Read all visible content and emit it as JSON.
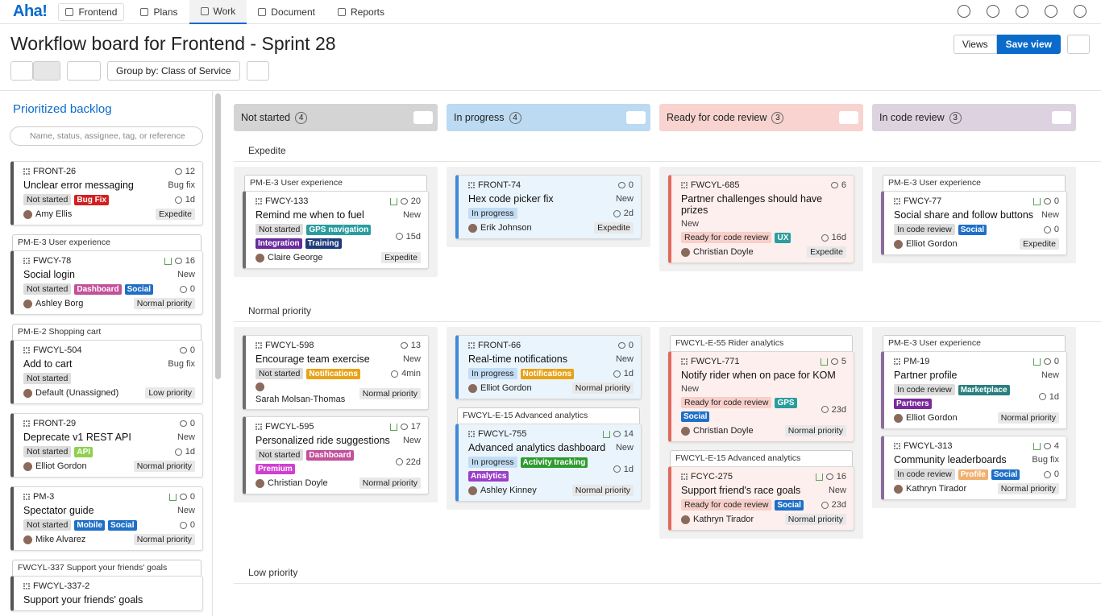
{
  "nav": {
    "logo": "Aha!",
    "workspace": "Frontend",
    "tabs": [
      "Plans",
      "Work",
      "Document",
      "Reports"
    ],
    "active_tab": 1
  },
  "header": {
    "title": "Workflow board for Frontend - Sprint 28",
    "views": "Views",
    "save": "Save view"
  },
  "toolbar": {
    "group_by": "Group by: Class of Service"
  },
  "backlog": {
    "title": "Prioritized backlog",
    "search_placeholder": "Name, status, assignee, tag, or reference",
    "items": [
      {
        "cards": [
          {
            "id": "FRONT-26",
            "score": 12,
            "title": "Unclear error messaging",
            "type": "Bug fix",
            "status": "Not started",
            "tags": [
              {
                "label": "Bug Fix",
                "color": "#d21f1f"
              }
            ],
            "time": "1d",
            "assignee": "Amy Ellis",
            "priority": "Expedite"
          }
        ]
      },
      {
        "parent": "PM-E-3 User experience",
        "cards": [
          {
            "id": "FWCY-78",
            "tree": true,
            "score": 16,
            "title": "Social login",
            "type": "New",
            "status": "Not started",
            "tags": [
              {
                "label": "Dashboard",
                "color": "#c2509a"
              },
              {
                "label": "Social",
                "color": "#1f6fc7"
              }
            ],
            "time": "0",
            "assignee": "Ashley Borg",
            "priority": "Normal priority"
          }
        ]
      },
      {
        "parent": "PM-E-2 Shopping cart",
        "cards": [
          {
            "id": "FWCYL-504",
            "score": 0,
            "title": "Add to cart",
            "type": "Bug fix",
            "status": "Not started",
            "assignee": "Default (Unassigned)",
            "priority": "Low priority"
          }
        ]
      },
      {
        "cards": [
          {
            "id": "FRONT-29",
            "score": 0,
            "title": "Deprecate v1 REST API",
            "type": "New",
            "status": "Not started",
            "tags": [
              {
                "label": "API",
                "color": "#8fd14f"
              }
            ],
            "time": "1d",
            "assignee": "Elliot Gordon",
            "priority": "Normal priority"
          }
        ]
      },
      {
        "cards": [
          {
            "id": "PM-3",
            "tree": true,
            "score": 0,
            "title": "Spectator guide",
            "type": "New",
            "status": "Not started",
            "tags": [
              {
                "label": "Mobile",
                "color": "#1f6fc7"
              },
              {
                "label": "Social",
                "color": "#1f6fc7"
              }
            ],
            "time": "0",
            "assignee": "Mike Alvarez",
            "priority": "Normal priority"
          }
        ]
      },
      {
        "parent": "FWCYL-337 Support your friends' goals",
        "cards": [
          {
            "id": "FWCYL-337-2",
            "title": "Support your friends' goals"
          }
        ]
      }
    ]
  },
  "board": {
    "columns": [
      {
        "name": "Not started",
        "count": 4,
        "color": "#d4d4d4",
        "accent": "#6e6e6e",
        "card_bg": "#ffffff",
        "chip": "#dcdcdc"
      },
      {
        "name": "In progress",
        "count": 4,
        "color": "#bcdaf1",
        "accent": "#3f8ad6",
        "card_bg": "#eaf4fc",
        "chip": "#c3def4"
      },
      {
        "name": "Ready for code review",
        "count": 3,
        "color": "#f8d3cf",
        "accent": "#e06a5c",
        "card_bg": "#fdefed",
        "chip": "#f7cfc9"
      },
      {
        "name": "In code review",
        "count": 3,
        "color": "#dcd2e0",
        "accent": "#8a6b9b",
        "card_bg": "#ffffff",
        "chip": "#dcdcdc"
      }
    ],
    "groups": [
      {
        "name": "Expedite",
        "cells": [
          [
            {
              "parent": "PM-E-3 User experience",
              "cards": [
                {
                  "id": "FWCY-133",
                  "tree": true,
                  "score": 20,
                  "title": "Remind me when to fuel",
                  "type": "New",
                  "status": "Not started",
                  "tags": [
                    {
                      "label": "GPS navigation",
                      "color": "#2a9d9f"
                    },
                    {
                      "label": "Integration",
                      "color": "#6a2a9c"
                    },
                    {
                      "label": "Training",
                      "color": "#1e3a7a"
                    }
                  ],
                  "time": "15d",
                  "assignee": "Claire George",
                  "priority": "Expedite"
                }
              ]
            }
          ],
          [
            {
              "cards": [
                {
                  "id": "FRONT-74",
                  "score": 0,
                  "title": "Hex code picker fix",
                  "type": "New",
                  "status": "In progress",
                  "time": "2d",
                  "assignee": "Erik Johnson",
                  "priority": "Expedite"
                }
              ]
            }
          ],
          [
            {
              "cards": [
                {
                  "id": "FWCYL-685",
                  "score": 6,
                  "title": "Partner challenges should have prizes",
                  "type": "New",
                  "status": "Ready for code review",
                  "tags": [
                    {
                      "label": "UX",
                      "color": "#2a9d9f"
                    }
                  ],
                  "time": "16d",
                  "assignee": "Christian Doyle",
                  "priority": "Expedite"
                }
              ]
            }
          ],
          [
            {
              "parent": "PM-E-3 User experience",
              "cards": [
                {
                  "id": "FWCY-77",
                  "tree": true,
                  "score": 0,
                  "title": "Social share and follow buttons",
                  "type": "New",
                  "status": "In code review",
                  "tags": [
                    {
                      "label": "Social",
                      "color": "#1f6fc7"
                    }
                  ],
                  "time": "0",
                  "assignee": "Elliot Gordon",
                  "priority": "Expedite"
                }
              ]
            }
          ]
        ]
      },
      {
        "name": "Normal priority",
        "cells": [
          [
            {
              "cards": [
                {
                  "id": "FWCYL-598",
                  "score": 13,
                  "title": "Encourage team exercise",
                  "type": "New",
                  "status": "Not started",
                  "tags": [
                    {
                      "label": "Notifications",
                      "color": "#e8a317"
                    }
                  ],
                  "time": "4min",
                  "assignee": "Sarah Molsan-Thomas",
                  "priority": "Normal priority"
                },
                {
                  "id": "FWCYL-595",
                  "tree": true,
                  "score": 17,
                  "title": "Personalized ride suggestions",
                  "type": "New",
                  "status": "Not started",
                  "tags": [
                    {
                      "label": "Dashboard",
                      "color": "#c2509a"
                    },
                    {
                      "label": "Premium",
                      "color": "#d13fd1"
                    }
                  ],
                  "time": "22d",
                  "assignee": "Christian Doyle",
                  "priority": "Normal priority"
                }
              ]
            }
          ],
          [
            {
              "cards": [
                {
                  "id": "FRONT-66",
                  "score": 0,
                  "title": "Real-time notifications",
                  "type": "New",
                  "status": "In progress",
                  "tags": [
                    {
                      "label": "Notifications",
                      "color": "#e8a317"
                    }
                  ],
                  "time": "1d",
                  "assignee": "Elliot Gordon",
                  "priority": "Normal priority"
                }
              ]
            },
            {
              "parent": "FWCYL-E-15 Advanced analytics",
              "cards": [
                {
                  "id": "FWCYL-755",
                  "tree": true,
                  "score": 14,
                  "title": "Advanced analytics dashboard",
                  "type": "New",
                  "status": "In progress",
                  "tags": [
                    {
                      "label": "Activity tracking",
                      "color": "#2e9b2e"
                    },
                    {
                      "label": "Analytics",
                      "color": "#9b3fc9"
                    }
                  ],
                  "time": "1d",
                  "assignee": "Ashley Kinney",
                  "priority": "Normal priority"
                }
              ]
            }
          ],
          [
            {
              "parent": "FWCYL-E-55 Rider analytics",
              "cards": [
                {
                  "id": "FWCYL-771",
                  "tree": true,
                  "score": 5,
                  "title": "Notify rider when on pace for KOM",
                  "type": "New",
                  "status": "Ready for code review",
                  "tags": [
                    {
                      "label": "GPS",
                      "color": "#2a9d9f"
                    },
                    {
                      "label": "Social",
                      "color": "#1f6fc7"
                    }
                  ],
                  "time": "23d",
                  "assignee": "Christian Doyle",
                  "priority": "Normal priority"
                }
              ]
            },
            {
              "parent": "FWCYL-E-15 Advanced analytics",
              "cards": [
                {
                  "id": "FCYC-275",
                  "tree": true,
                  "score": 16,
                  "title": "Support friend's race goals",
                  "type": "New",
                  "status": "Ready for code review",
                  "tags": [
                    {
                      "label": "Social",
                      "color": "#1f6fc7"
                    }
                  ],
                  "time": "23d",
                  "assignee": "Kathryn Tirador",
                  "priority": "Normal priority"
                }
              ]
            }
          ],
          [
            {
              "parent": "PM-E-3 User experience",
              "cards": [
                {
                  "id": "PM-19",
                  "tree": true,
                  "score": 0,
                  "title": "Partner profile",
                  "type": "New",
                  "status": "In code review",
                  "tags": [
                    {
                      "label": "Marketplace",
                      "color": "#2a7f7f"
                    },
                    {
                      "label": "Partners",
                      "color": "#7a2a9c"
                    }
                  ],
                  "time": "1d",
                  "assignee": "Elliot Gordon",
                  "priority": "Normal priority"
                },
                {
                  "id": "FWCYL-313",
                  "tree": true,
                  "score": 4,
                  "title": "Community leaderboards",
                  "type": "Bug fix",
                  "status": "In code review",
                  "tags": [
                    {
                      "label": "Profile",
                      "color": "#f0b070"
                    },
                    {
                      "label": "Social",
                      "color": "#1f6fc7"
                    }
                  ],
                  "time": "0",
                  "assignee": "Kathryn Tirador",
                  "priority": "Normal priority"
                }
              ]
            }
          ]
        ]
      },
      {
        "name": "Low priority"
      }
    ]
  }
}
